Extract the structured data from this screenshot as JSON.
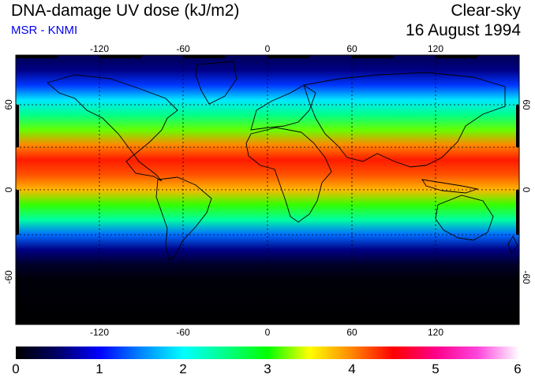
{
  "header": {
    "title": "DNA-damage UV dose (kJ/m2)",
    "subtitle": "MSR - KNMI",
    "condition": "Clear-sky",
    "date": "16 August 1994"
  },
  "map": {
    "projection": "equirectangular",
    "lon_range": [
      -180,
      180
    ],
    "lat_range": [
      -90,
      90
    ],
    "grid": true,
    "lon_ticks": [
      "-120",
      "-60",
      "0",
      "60",
      "120"
    ],
    "lat_ticks": [
      "60",
      "0",
      "-60"
    ],
    "uv_dose_by_latitude": [
      {
        "lat": 90,
        "dose": 0.4
      },
      {
        "lat": 80,
        "dose": 0.6
      },
      {
        "lat": 70,
        "dose": 1.2
      },
      {
        "lat": 60,
        "dose": 1.9
      },
      {
        "lat": 50,
        "dose": 2.5
      },
      {
        "lat": 40,
        "dose": 3.2
      },
      {
        "lat": 30,
        "dose": 4.0
      },
      {
        "lat": 20,
        "dose": 4.4
      },
      {
        "lat": 10,
        "dose": 4.2
      },
      {
        "lat": 0,
        "dose": 3.8
      },
      {
        "lat": -10,
        "dose": 3.1
      },
      {
        "lat": -20,
        "dose": 2.4
      },
      {
        "lat": -30,
        "dose": 1.4
      },
      {
        "lat": -40,
        "dose": 0.6
      },
      {
        "lat": -50,
        "dose": 0.2
      },
      {
        "lat": -60,
        "dose": 0.05
      },
      {
        "lat": -90,
        "dose": 0.0
      }
    ]
  },
  "colorbar": {
    "min": 0,
    "max": 6,
    "tick_labels": [
      "0",
      "1",
      "2",
      "3",
      "4",
      "5",
      "6"
    ],
    "colors": [
      {
        "value": 0.0,
        "color": "#000000"
      },
      {
        "value": 0.5,
        "color": "#000066"
      },
      {
        "value": 1.0,
        "color": "#0000ff"
      },
      {
        "value": 1.5,
        "color": "#0088ff"
      },
      {
        "value": 2.0,
        "color": "#00ffff"
      },
      {
        "value": 2.5,
        "color": "#00ff88"
      },
      {
        "value": 3.0,
        "color": "#00ff00"
      },
      {
        "value": 3.5,
        "color": "#ffff00"
      },
      {
        "value": 4.0,
        "color": "#ff8800"
      },
      {
        "value": 4.5,
        "color": "#ff0000"
      },
      {
        "value": 5.0,
        "color": "#ff0088"
      },
      {
        "value": 5.5,
        "color": "#ff44dd"
      },
      {
        "value": 6.0,
        "color": "#ffffff"
      }
    ]
  }
}
